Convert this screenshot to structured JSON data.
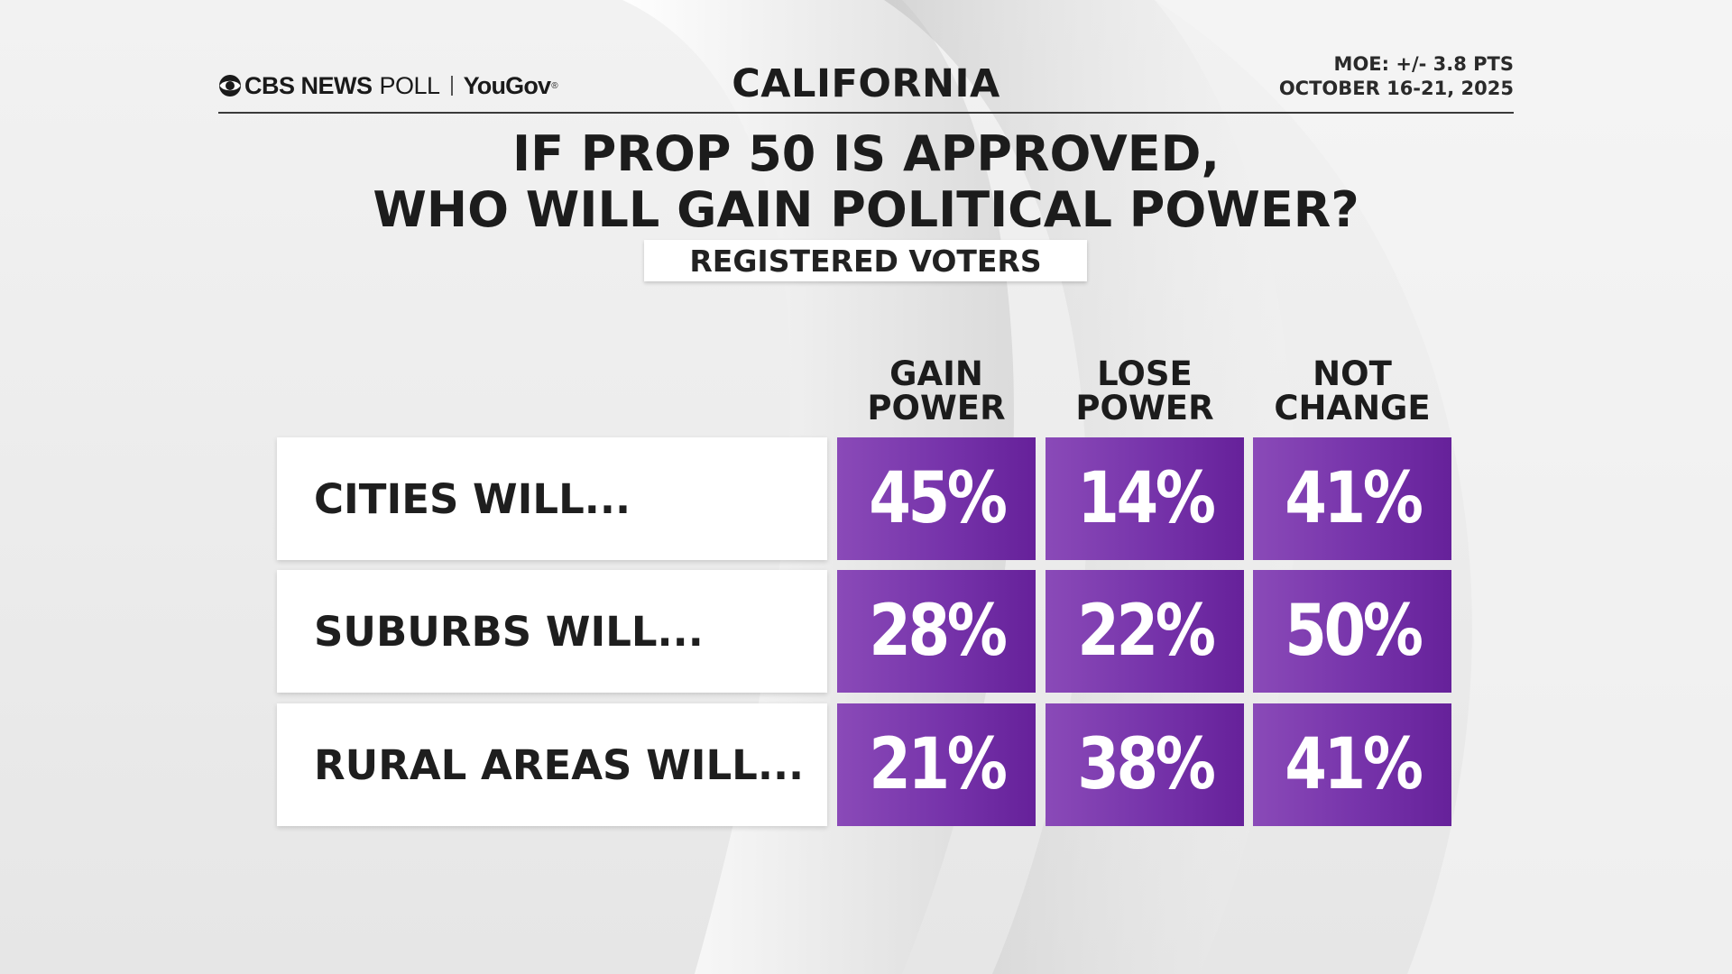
{
  "header": {
    "logo_cbs": "CBS NEWS",
    "logo_poll": "POLL",
    "logo_yougov": "YouGov",
    "logo_reg": "®",
    "state": "CALIFORNIA",
    "moe": "MOE: +/- 3.8 PTS",
    "dates": "OCTOBER 16-21, 2025"
  },
  "question": {
    "line1": "IF PROP 50 IS APPROVED,",
    "line2": "WHO WILL GAIN POLITICAL POWER?"
  },
  "subgroup": "REGISTERED VOTERS",
  "colors": {
    "cell_light": "#8a4ab8",
    "cell_dark": "#66219a",
    "text_dark": "#1c1c1c"
  },
  "chart_data": {
    "type": "table",
    "title": "IF PROP 50 IS APPROVED, WHO WILL GAIN POLITICAL POWER?",
    "subtitle": "REGISTERED VOTERS",
    "unit": "%",
    "columns": [
      {
        "line1": "GAIN",
        "line2": "POWER"
      },
      {
        "line1": "LOSE",
        "line2": "POWER"
      },
      {
        "line1": "NOT",
        "line2": "CHANGE"
      }
    ],
    "rows": [
      {
        "label": "CITIES WILL...",
        "values": [
          45,
          14,
          41
        ],
        "display": [
          "45%",
          "14%",
          "41%"
        ]
      },
      {
        "label": "SUBURBS WILL...",
        "values": [
          28,
          22,
          50
        ],
        "display": [
          "28%",
          "22%",
          "50%"
        ]
      },
      {
        "label": "RURAL AREAS WILL...",
        "values": [
          21,
          38,
          41
        ],
        "display": [
          "21%",
          "38%",
          "41%"
        ]
      }
    ]
  }
}
